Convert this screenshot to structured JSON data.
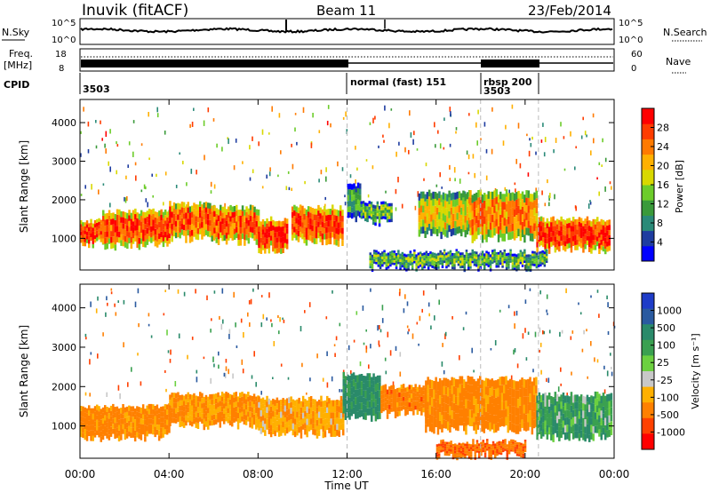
{
  "header": {
    "station": "Inuvik (fitACF)",
    "beam": "Beam 11",
    "date": "23/Feb/2014"
  },
  "top_panels": {
    "nsky_label": "N.Sky",
    "nsky_ticks": [
      "10^5",
      "10^0"
    ],
    "nsearch_label": "N.Search",
    "nsearch_ticks": [
      "10^5",
      "10^0"
    ],
    "freq_label": "Freq.",
    "freq_unit": "[MHz]",
    "freq_ticks": [
      "18",
      "8"
    ],
    "nave_label": "Nave",
    "nave_ticks": [
      "60",
      "0"
    ],
    "cpid_label": "CPID",
    "cpid_segments": [
      {
        "label": "3503",
        "start": 0.0,
        "end": 12.0
      },
      {
        "label": "normal (fast) 151",
        "start": 12.0,
        "end": 18.0
      },
      {
        "label": "rbsp 200",
        "start": 18.0,
        "end": 20.6
      },
      {
        "label": "3503",
        "start": 18.0,
        "end": 20.6
      }
    ]
  },
  "chart_data": [
    {
      "type": "heatmap",
      "panel": "power",
      "xlabel": "Time UT",
      "ylabel": "Slant Range [km]",
      "x_ticks": [
        "00:00",
        "04:00",
        "08:00",
        "12:00",
        "16:00",
        "20:00",
        "00:00"
      ],
      "xlim": [
        0,
        24
      ],
      "y_ticks": [
        1000,
        2000,
        3000,
        4000
      ],
      "ylim": [
        180,
        4600
      ],
      "colorbar": {
        "label": "Power [dB]",
        "ticks": [
          "4",
          "8",
          "12",
          "16",
          "20",
          "24",
          "28"
        ],
        "colors": [
          "#0000ff",
          "#1e3ca0",
          "#2a8a78",
          "#3a9a3a",
          "#6ccc2a",
          "#d8d800",
          "#ffb000",
          "#ff7a00",
          "#ff3c00",
          "#ff0000"
        ]
      },
      "bands": [
        {
          "start": 0.0,
          "end": 1.0,
          "low": 850,
          "high": 1450,
          "value": 26
        },
        {
          "start": 1.0,
          "end": 4.0,
          "low": 800,
          "high": 1700,
          "value": 25
        },
        {
          "start": 4.0,
          "end": 6.0,
          "low": 1000,
          "high": 1900,
          "value": 24
        },
        {
          "start": 6.0,
          "end": 8.0,
          "low": 900,
          "high": 1800,
          "value": 24
        },
        {
          "start": 8.0,
          "end": 9.3,
          "low": 700,
          "high": 1500,
          "value": 27
        },
        {
          "start": 9.5,
          "end": 11.8,
          "low": 900,
          "high": 1800,
          "value": 26
        },
        {
          "start": 12.0,
          "end": 12.6,
          "low": 1500,
          "high": 2400,
          "value": 10
        },
        {
          "start": 12.6,
          "end": 14.0,
          "low": 1400,
          "high": 1900,
          "value": 12
        },
        {
          "start": 15.2,
          "end": 17.5,
          "low": 1100,
          "high": 2200,
          "value": 18
        },
        {
          "start": 17.5,
          "end": 20.5,
          "low": 1000,
          "high": 2200,
          "value": 22
        },
        {
          "start": 20.5,
          "end": 23.8,
          "low": 700,
          "high": 1500,
          "value": 27
        },
        {
          "start": 13.0,
          "end": 21.0,
          "low": 250,
          "high": 650,
          "value": 12
        }
      ]
    },
    {
      "type": "heatmap",
      "panel": "velocity",
      "xlabel": "Time UT",
      "ylabel": "Slant Range [km]",
      "x_ticks": [
        "00:00",
        "04:00",
        "08:00",
        "12:00",
        "16:00",
        "20:00",
        "00:00"
      ],
      "xlim": [
        0,
        24
      ],
      "y_ticks": [
        1000,
        2000,
        3000,
        4000
      ],
      "ylim": [
        180,
        4600
      ],
      "colorbar": {
        "label": "Velocity [m s⁻¹]",
        "ticks": [
          "1000",
          "500",
          "100",
          "25",
          "-25",
          "-100",
          "-500",
          "-1000"
        ],
        "colors": [
          "#1e3cc8",
          "#2a5aa0",
          "#2a8a6a",
          "#3aa050",
          "#6cd040",
          "#c8c8c8",
          "#ffb000",
          "#ff8000",
          "#ff4000",
          "#ff0000"
        ]
      },
      "bands": [
        {
          "start": 0.0,
          "end": 4.0,
          "low": 700,
          "high": 1500,
          "value": -150
        },
        {
          "start": 4.0,
          "end": 8.0,
          "low": 1000,
          "high": 1800,
          "value": -120
        },
        {
          "start": 8.0,
          "end": 11.8,
          "low": 800,
          "high": 1700,
          "value": -80
        },
        {
          "start": 11.8,
          "end": 13.5,
          "low": 1200,
          "high": 2300,
          "value": 150
        },
        {
          "start": 13.5,
          "end": 15.5,
          "low": 1300,
          "high": 2000,
          "value": -200
        },
        {
          "start": 15.5,
          "end": 20.5,
          "low": 900,
          "high": 2200,
          "value": -150
        },
        {
          "start": 20.5,
          "end": 23.9,
          "low": 700,
          "high": 1800,
          "value": 80
        },
        {
          "start": 16.0,
          "end": 20.0,
          "low": 250,
          "high": 600,
          "value": -250
        }
      ]
    }
  ]
}
